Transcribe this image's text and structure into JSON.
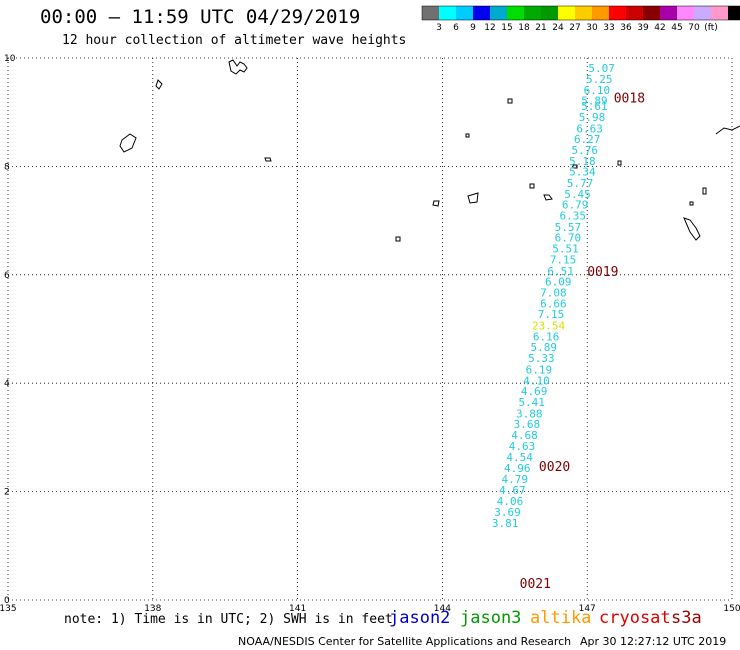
{
  "title": "00:00 – 11:59 UTC 04/29/2019",
  "subtitle": "12 hour collection of altimeter wave heights",
  "colorbar": {
    "colors": [
      "#707070",
      "#00ffff",
      "#00ccff",
      "#0000ee",
      "#00aacc",
      "#00dd00",
      "#00aa00",
      "#009900",
      "#ffff00",
      "#ffcc00",
      "#ff9900",
      "#ff0000",
      "#cc0000",
      "#880000",
      "#aa00aa",
      "#ff88ff",
      "#ccaaff",
      "#ff99cc",
      "#000000"
    ],
    "labels": [
      "3",
      "6",
      "9",
      "12",
      "15",
      "18",
      "21",
      "24",
      "27",
      "30",
      "33",
      "36",
      "39",
      "42",
      "45",
      "70",
      "(ft)"
    ]
  },
  "axes": {
    "x_ticks": [
      "135",
      "138",
      "141",
      "144",
      "147",
      "150"
    ],
    "y_ticks": [
      "0",
      "2",
      "4",
      "6",
      "8",
      "10"
    ],
    "xlim": [
      135,
      150
    ],
    "ylim": [
      0,
      10
    ]
  },
  "map_data": {
    "wave_heights": [
      {
        "lon": 147.3,
        "lat": 9.74,
        "v": "5.07",
        "color": "#22ccdd"
      },
      {
        "lon": 147.25,
        "lat": 9.54,
        "v": "5.25",
        "color": "#22ccdd"
      },
      {
        "lon": 147.2,
        "lat": 9.34,
        "v": "6.10",
        "color": "#22ccdd"
      },
      {
        "lon": 147.15,
        "lat": 9.14,
        "v": "5.89",
        "color": "#22ccdd"
      },
      {
        "lon": 147.15,
        "lat": 9.04,
        "v": "5.61",
        "color": "#22ccdd"
      },
      {
        "lon": 147.1,
        "lat": 8.84,
        "v": "5.98",
        "color": "#22ccdd"
      },
      {
        "lon": 147.05,
        "lat": 8.63,
        "v": "6.63",
        "color": "#22ccdd"
      },
      {
        "lon": 147.0,
        "lat": 8.43,
        "v": "6.27",
        "color": "#22ccdd"
      },
      {
        "lon": 146.95,
        "lat": 8.23,
        "v": "5.76",
        "color": "#22ccdd"
      },
      {
        "lon": 146.9,
        "lat": 8.03,
        "v": "5.18",
        "color": "#22ccdd"
      },
      {
        "lon": 146.9,
        "lat": 7.83,
        "v": "5.34",
        "color": "#22ccdd"
      },
      {
        "lon": 146.85,
        "lat": 7.62,
        "v": "5.77",
        "color": "#22ccdd"
      },
      {
        "lon": 146.8,
        "lat": 7.42,
        "v": "5.45",
        "color": "#22ccdd"
      },
      {
        "lon": 146.75,
        "lat": 7.22,
        "v": "6.79",
        "color": "#22ccdd"
      },
      {
        "lon": 146.7,
        "lat": 7.02,
        "v": "6.35",
        "color": "#22ccdd"
      },
      {
        "lon": 146.6,
        "lat": 6.81,
        "v": "5.57",
        "color": "#22ccdd"
      },
      {
        "lon": 146.6,
        "lat": 6.61,
        "v": "6.70",
        "color": "#22ccdd"
      },
      {
        "lon": 146.55,
        "lat": 6.41,
        "v": "5.51",
        "color": "#22ccdd"
      },
      {
        "lon": 146.5,
        "lat": 6.21,
        "v": "7.15",
        "color": "#22ccdd"
      },
      {
        "lon": 146.45,
        "lat": 6.0,
        "v": "6.51",
        "color": "#22ccdd"
      },
      {
        "lon": 146.4,
        "lat": 5.8,
        "v": "6.09",
        "color": "#22ccdd"
      },
      {
        "lon": 146.3,
        "lat": 5.6,
        "v": "7.08",
        "color": "#22ccdd"
      },
      {
        "lon": 146.3,
        "lat": 5.4,
        "v": "6.66",
        "color": "#22ccdd"
      },
      {
        "lon": 146.25,
        "lat": 5.2,
        "v": "7.15",
        "color": "#22ccdd"
      },
      {
        "lon": 146.2,
        "lat": 4.99,
        "v": "23.54",
        "color": "#dddd00"
      },
      {
        "lon": 146.15,
        "lat": 4.79,
        "v": "6.16",
        "color": "#22ccdd"
      },
      {
        "lon": 146.1,
        "lat": 4.59,
        "v": "5.89",
        "color": "#22ccdd"
      },
      {
        "lon": 146.05,
        "lat": 4.39,
        "v": "5.33",
        "color": "#22ccdd"
      },
      {
        "lon": 146.0,
        "lat": 4.18,
        "v": "6.19",
        "color": "#22ccdd"
      },
      {
        "lon": 145.95,
        "lat": 3.98,
        "v": "4.10",
        "color": "#22ccdd"
      },
      {
        "lon": 145.9,
        "lat": 3.78,
        "v": "4.69",
        "color": "#22ccdd"
      },
      {
        "lon": 145.85,
        "lat": 3.58,
        "v": "5.41",
        "color": "#22ccdd"
      },
      {
        "lon": 145.8,
        "lat": 3.37,
        "v": "3.88",
        "color": "#22ccdd"
      },
      {
        "lon": 145.75,
        "lat": 3.17,
        "v": "3.68",
        "color": "#22ccdd"
      },
      {
        "lon": 145.7,
        "lat": 2.97,
        "v": "4.68",
        "color": "#22ccdd"
      },
      {
        "lon": 145.65,
        "lat": 2.77,
        "v": "4.63",
        "color": "#22ccdd"
      },
      {
        "lon": 145.6,
        "lat": 2.56,
        "v": "4.54",
        "color": "#22ccdd"
      },
      {
        "lon": 145.55,
        "lat": 2.36,
        "v": "4.96",
        "color": "#22ccdd"
      },
      {
        "lon": 145.5,
        "lat": 2.16,
        "v": "4.79",
        "color": "#22ccdd"
      },
      {
        "lon": 145.45,
        "lat": 1.96,
        "v": "4.67",
        "color": "#22ccdd"
      },
      {
        "lon": 145.4,
        "lat": 1.75,
        "v": "4.06",
        "color": "#22ccdd"
      },
      {
        "lon": 145.35,
        "lat": 1.55,
        "v": "3.69",
        "color": "#22ccdd"
      },
      {
        "lon": 145.3,
        "lat": 1.35,
        "v": "3.81",
        "color": "#22ccdd"
      }
    ],
    "time_labels": [
      {
        "lon": 147.55,
        "lat": 9.18,
        "text": "0018"
      },
      {
        "lon": 147.0,
        "lat": 5.98,
        "text": "0019"
      },
      {
        "lon": 146.0,
        "lat": 2.38,
        "text": "0020"
      },
      {
        "lon": 145.6,
        "lat": 0.22,
        "text": "0021"
      }
    ]
  },
  "note": "note: 1) Time is in UTC; 2) SWH is in feet",
  "satellites": [
    {
      "name": "jason2",
      "color": "#0000cc"
    },
    {
      "name": "jason3",
      "color": "#009900"
    },
    {
      "name": "altika",
      "color": "#ff9900"
    },
    {
      "name": "cryosat",
      "color": "#dd0000"
    },
    {
      "name": "s3a",
      "color": "#990000"
    }
  ],
  "footer": {
    "credit": "NOAA/NESDIS Center for Satellite Applications and Research",
    "timestamp": "Apr 30 12:27:12 UTC 2019"
  }
}
